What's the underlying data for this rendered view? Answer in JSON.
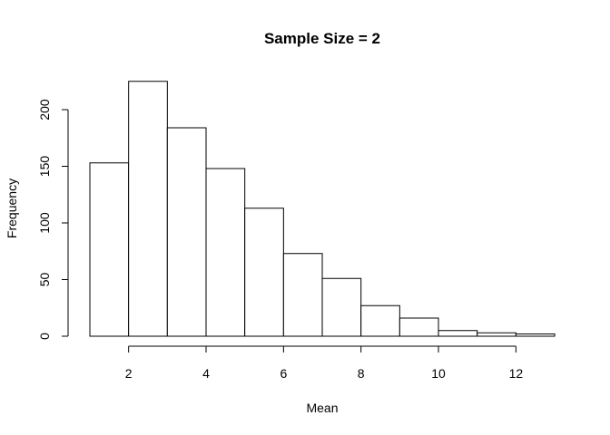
{
  "chart_data": {
    "type": "bar",
    "subtype": "histogram",
    "title": "Sample Size =  2",
    "xlabel": "Mean",
    "ylabel": "Frequency",
    "bin_edges": [
      1,
      2,
      3,
      4,
      5,
      6,
      7,
      8,
      9,
      10,
      11,
      12,
      13
    ],
    "values": [
      153,
      225,
      184,
      148,
      113,
      73,
      51,
      27,
      16,
      5,
      3,
      2
    ],
    "x_ticks": [
      2,
      4,
      6,
      8,
      10,
      12
    ],
    "x_tick_labels": [
      "2",
      "4",
      "6",
      "8",
      "10",
      "12"
    ],
    "y_ticks": [
      0,
      50,
      100,
      150,
      200
    ],
    "y_tick_labels": [
      "0",
      "50",
      "100",
      "150",
      "200"
    ],
    "xlim": [
      1,
      13
    ],
    "ylim": [
      0,
      225
    ],
    "grid": false,
    "legend": "none",
    "bar_fill": "#ffffff",
    "bar_stroke": "#000000"
  }
}
